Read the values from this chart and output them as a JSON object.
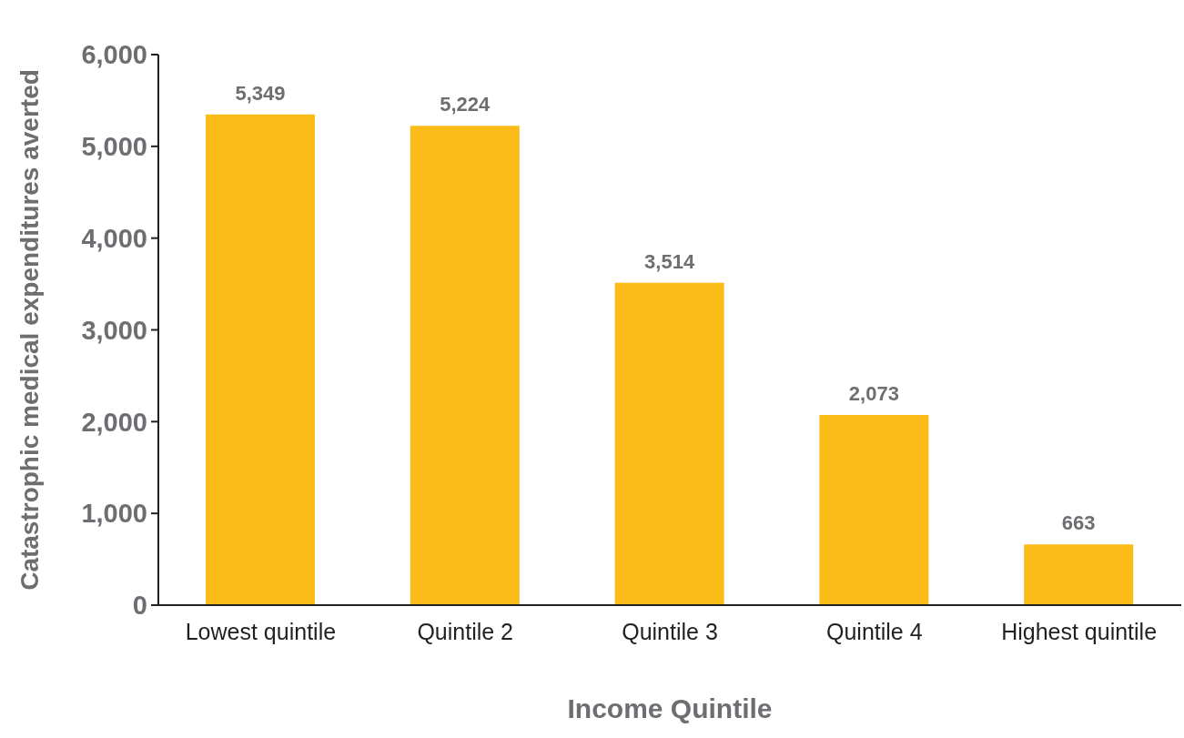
{
  "chart_data": {
    "type": "bar",
    "xlabel": "Income Quintile",
    "ylabel": "Catastrophic medical expenditures averted",
    "categories": [
      "Lowest quintile",
      "Quintile 2",
      "Quintile 3",
      "Quintile 4",
      "Highest quintile"
    ],
    "values": [
      5349,
      5224,
      3514,
      2073,
      663
    ],
    "value_labels": [
      "5,349",
      "5,224",
      "3,514",
      "2,073",
      "663"
    ],
    "color": "#fbbc1a",
    "ylim": [
      0,
      6000
    ],
    "yticks": [
      0,
      {
        "value": 1000,
        "label": "1,000"
      },
      {
        "value": 2000,
        "label": "2,000"
      },
      {
        "value": 3000,
        "label": "3,000"
      },
      {
        "value": 4000,
        "label": "4,000"
      },
      {
        "value": 5000,
        "label": "5,000"
      },
      {
        "value": 6000,
        "label": "6,000"
      }
    ]
  }
}
